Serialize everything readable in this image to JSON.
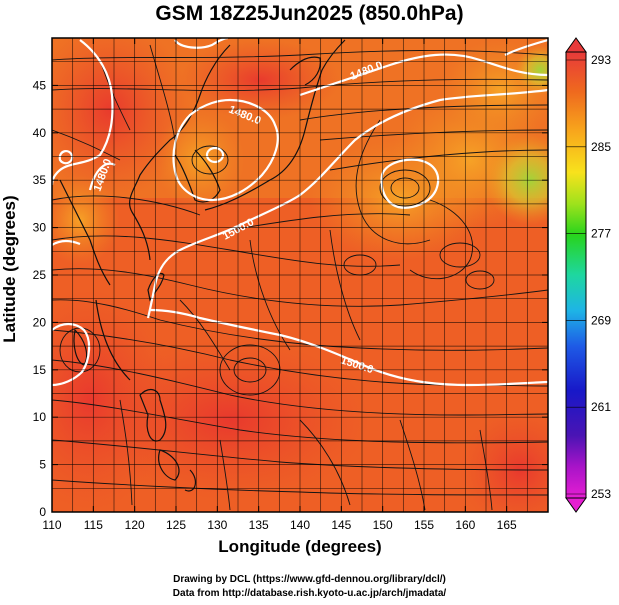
{
  "title": "GSM 18Z25Jun2025 (850.0hPa)",
  "xlabel": "Longitude (degrees)",
  "ylabel": "Latitude  (degrees)",
  "credits": [
    "Drawing by DCL (https://www.gfd-dennou.org/library/dcl/)",
    "Data from http://database.rish.kyoto-u.ac.jp/arch/jmadata/"
  ],
  "map": {
    "lon_range": [
      110,
      170
    ],
    "lat_range": [
      0,
      50
    ],
    "x_ticks": [
      "110",
      "115",
      "120",
      "125",
      "130",
      "135",
      "140",
      "145",
      "150",
      "155",
      "160",
      "165"
    ],
    "y_ticks": [
      "0",
      "5",
      "10",
      "15",
      "20",
      "25",
      "30",
      "35",
      "40",
      "45"
    ],
    "grid": true,
    "fields": [
      "temperature (shaded)",
      "geopotential height (white contours)",
      "wind streamlines"
    ],
    "contour_labels": [
      "1480.0",
      "1480.0",
      "1500.0",
      "1500.0",
      "1480.0"
    ],
    "colorbar": {
      "ticks": [
        "293",
        "285",
        "277",
        "269",
        "261",
        "253"
      ],
      "colors": [
        "#e83a3a",
        "#ef6a1e",
        "#f8a81c",
        "#f8e21c",
        "#9fe21c",
        "#28d41c",
        "#1ed7a0",
        "#1eb4e6",
        "#1e5ae6",
        "#1818c8",
        "#4a14b4",
        "#a814c8",
        "#e61ed2"
      ]
    }
  }
}
